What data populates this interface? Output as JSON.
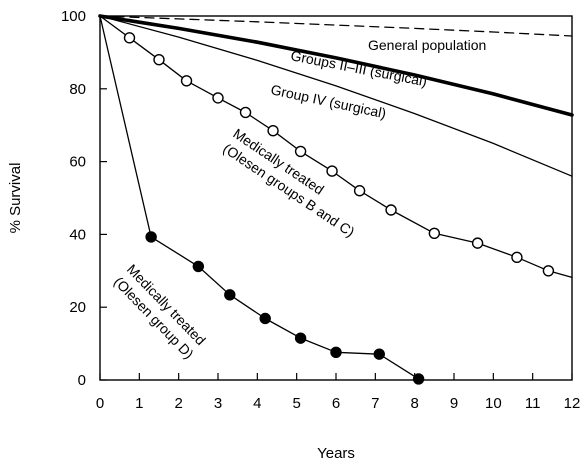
{
  "chart_data": {
    "type": "line",
    "title": "",
    "xlabel": "Years",
    "ylabel": "% Survival",
    "xlim": [
      0,
      12
    ],
    "ylim": [
      0,
      100
    ],
    "x_ticks": [
      0,
      1,
      2,
      3,
      4,
      5,
      6,
      7,
      8,
      9,
      10,
      11,
      12
    ],
    "y_ticks": [
      0,
      20,
      40,
      60,
      80,
      100
    ],
    "grid": false,
    "legend": "none",
    "series": [
      {
        "name": "General population",
        "style": "dashed",
        "color": "#000000",
        "x": [
          0,
          2,
          4,
          6,
          8,
          10,
          12
        ],
        "y": [
          100,
          99.2,
          98.4,
          97.5,
          96.6,
          95.6,
          94.5
        ]
      },
      {
        "name": "Groups II–III (surgical)",
        "style": "thick",
        "color": "#000000",
        "x": [
          0,
          2,
          4,
          6,
          8,
          10,
          12
        ],
        "y": [
          100,
          96.6,
          92.8,
          88.5,
          83.8,
          78.6,
          72.8
        ]
      },
      {
        "name": "Group IV (surgical)",
        "style": "thin",
        "color": "#000000",
        "x": [
          0,
          2,
          4,
          6,
          8,
          10,
          12
        ],
        "y": [
          100,
          94.2,
          87.8,
          80.8,
          73.2,
          65,
          56
        ]
      },
      {
        "name": "Medically treated (Olesen groups B and C)",
        "style": "open-circles",
        "color": "#000000",
        "x": [
          0,
          0.75,
          1.5,
          2.2,
          3.0,
          3.7,
          4.4,
          5.1,
          5.9,
          6.6,
          7.4,
          8.5,
          9.6,
          10.6,
          11.4,
          12
        ],
        "y": [
          100,
          94,
          88,
          82.2,
          77.5,
          73.5,
          68.5,
          62.8,
          57.4,
          52,
          46.7,
          40.3,
          37.6,
          33.7,
          30,
          28.2
        ],
        "markers": [
          0.75,
          1.5,
          2.2,
          3.0,
          3.7,
          4.4,
          5.1,
          5.9,
          6.6,
          7.4,
          8.5,
          9.6,
          10.6,
          11.4
        ]
      },
      {
        "name": "Medically treated (Olesen group D)",
        "style": "filled-circles",
        "color": "#000000",
        "x": [
          0,
          1.3,
          2.5,
          3.3,
          4.2,
          5.1,
          6.0,
          7.1,
          8.1
        ],
        "y": [
          100,
          39.3,
          31.2,
          23.4,
          16.9,
          11.5,
          7.6,
          7.1,
          0.3
        ],
        "markers": [
          1.3,
          2.5,
          3.3,
          4.2,
          5.1,
          6.0,
          7.1,
          8.1
        ]
      }
    ],
    "annotations": [
      {
        "text": "General population",
        "series": 0
      },
      {
        "text": "Groups II–III (surgical)",
        "series": 1
      },
      {
        "text": "Group IV (surgical)",
        "series": 2
      },
      {
        "lines": [
          "Medically treated",
          "(Olesen groups B and C)"
        ],
        "series": 3
      },
      {
        "lines": [
          "Medically treated",
          "(Olesen group D)"
        ],
        "series": 4
      }
    ]
  }
}
